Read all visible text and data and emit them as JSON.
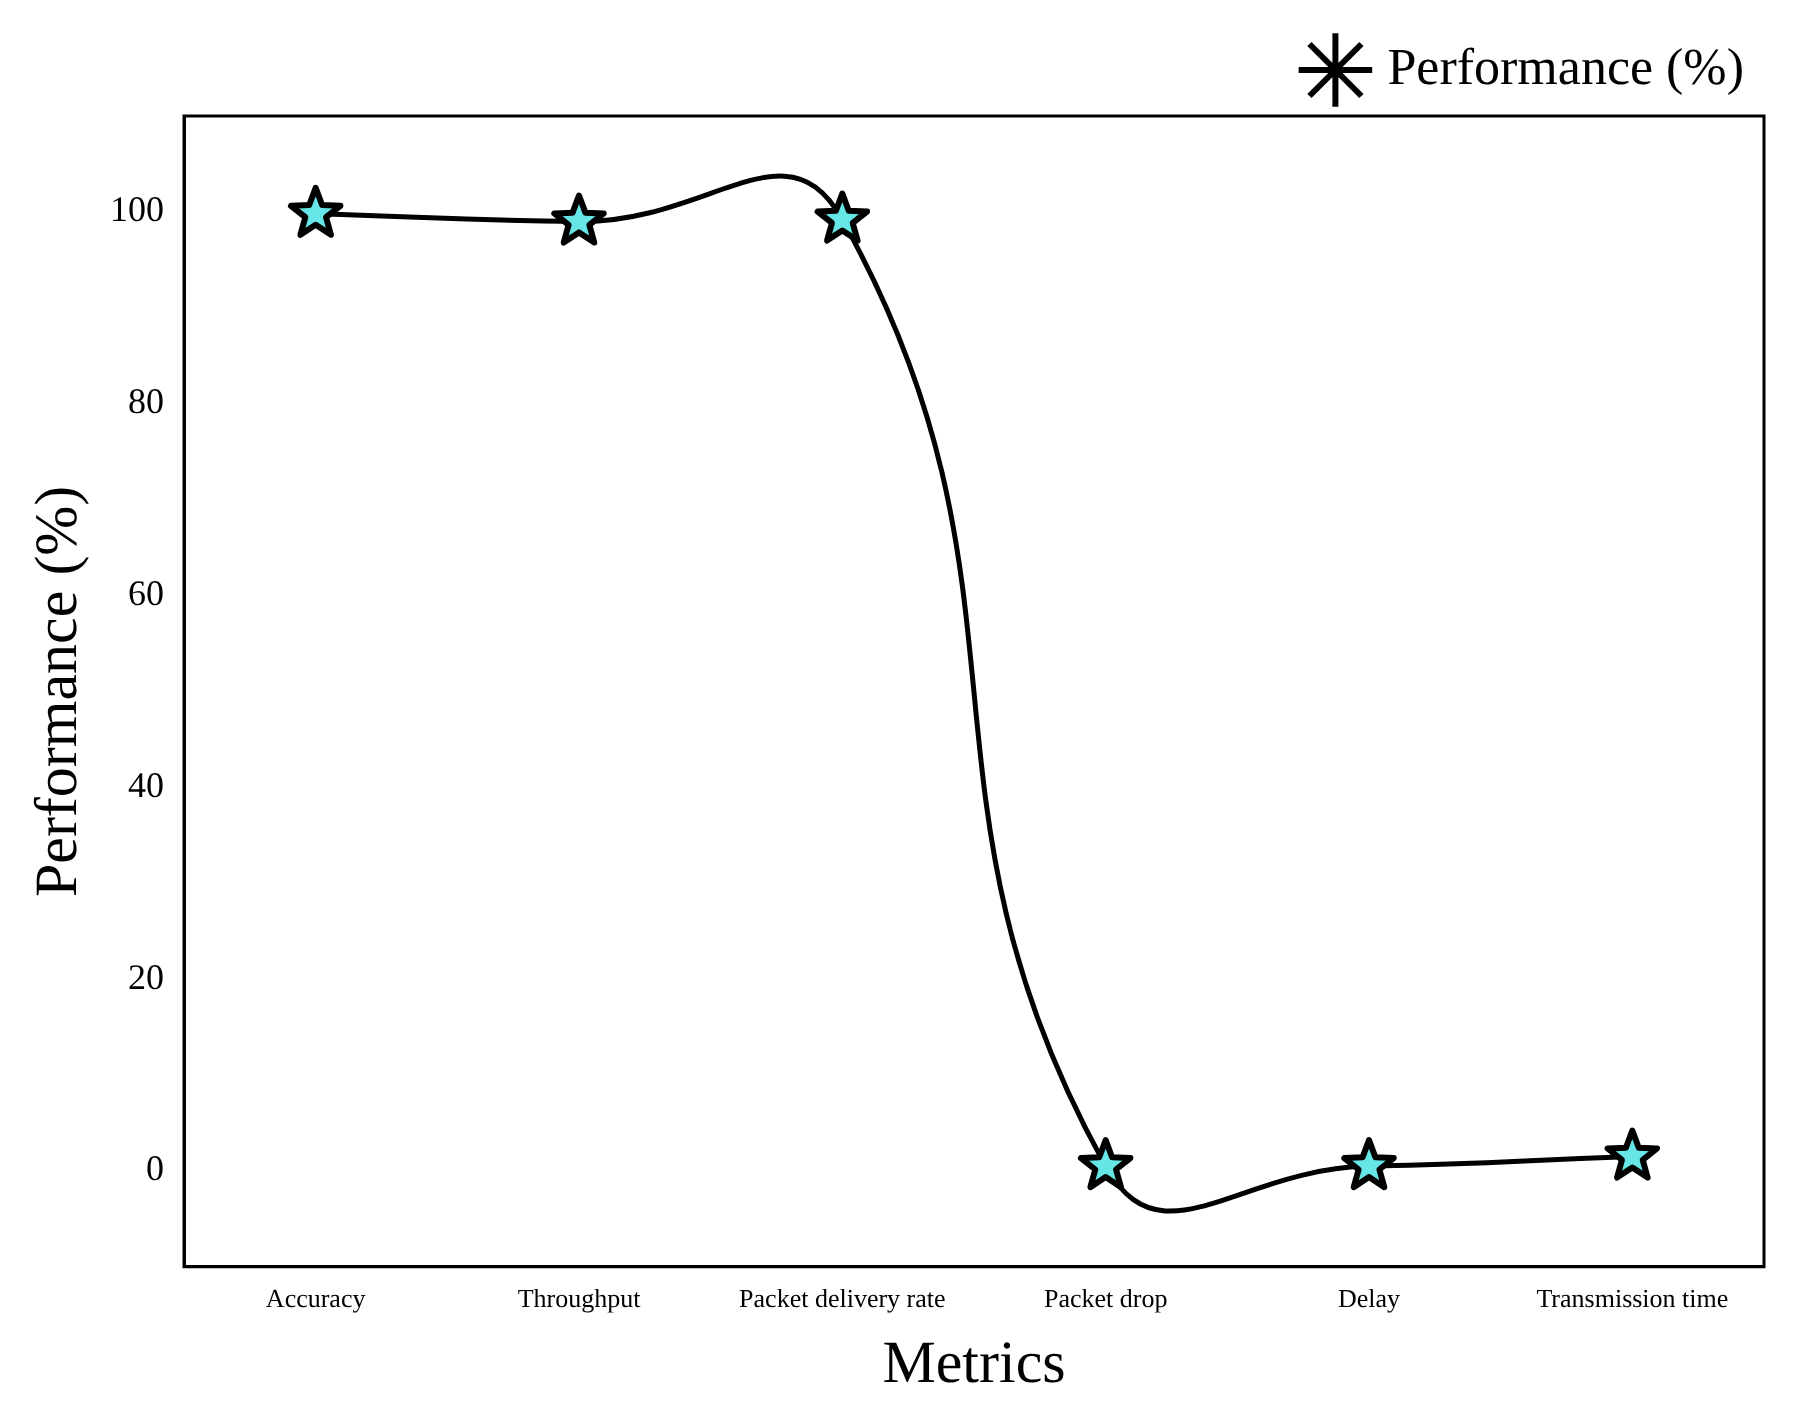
{
  "chart_data": {
    "type": "line",
    "xlabel": "Metrics",
    "ylabel": "Performance (%)",
    "categories": [
      "Accuracy",
      "Throughput",
      "Packet delivery rate",
      "Packet drop",
      "Delay",
      "Transmission time"
    ],
    "series": [
      {
        "name": "Performance (%)",
        "color": "#000000",
        "values": [
          99.8,
          99,
          99.2,
          0.5,
          0.5,
          1.5
        ]
      }
    ],
    "ylim": [
      -10,
      110
    ],
    "yticks": [
      0,
      20,
      40,
      60,
      80,
      100
    ],
    "grid": false,
    "legend": "top right",
    "marker": "star",
    "line_style": "solid"
  }
}
